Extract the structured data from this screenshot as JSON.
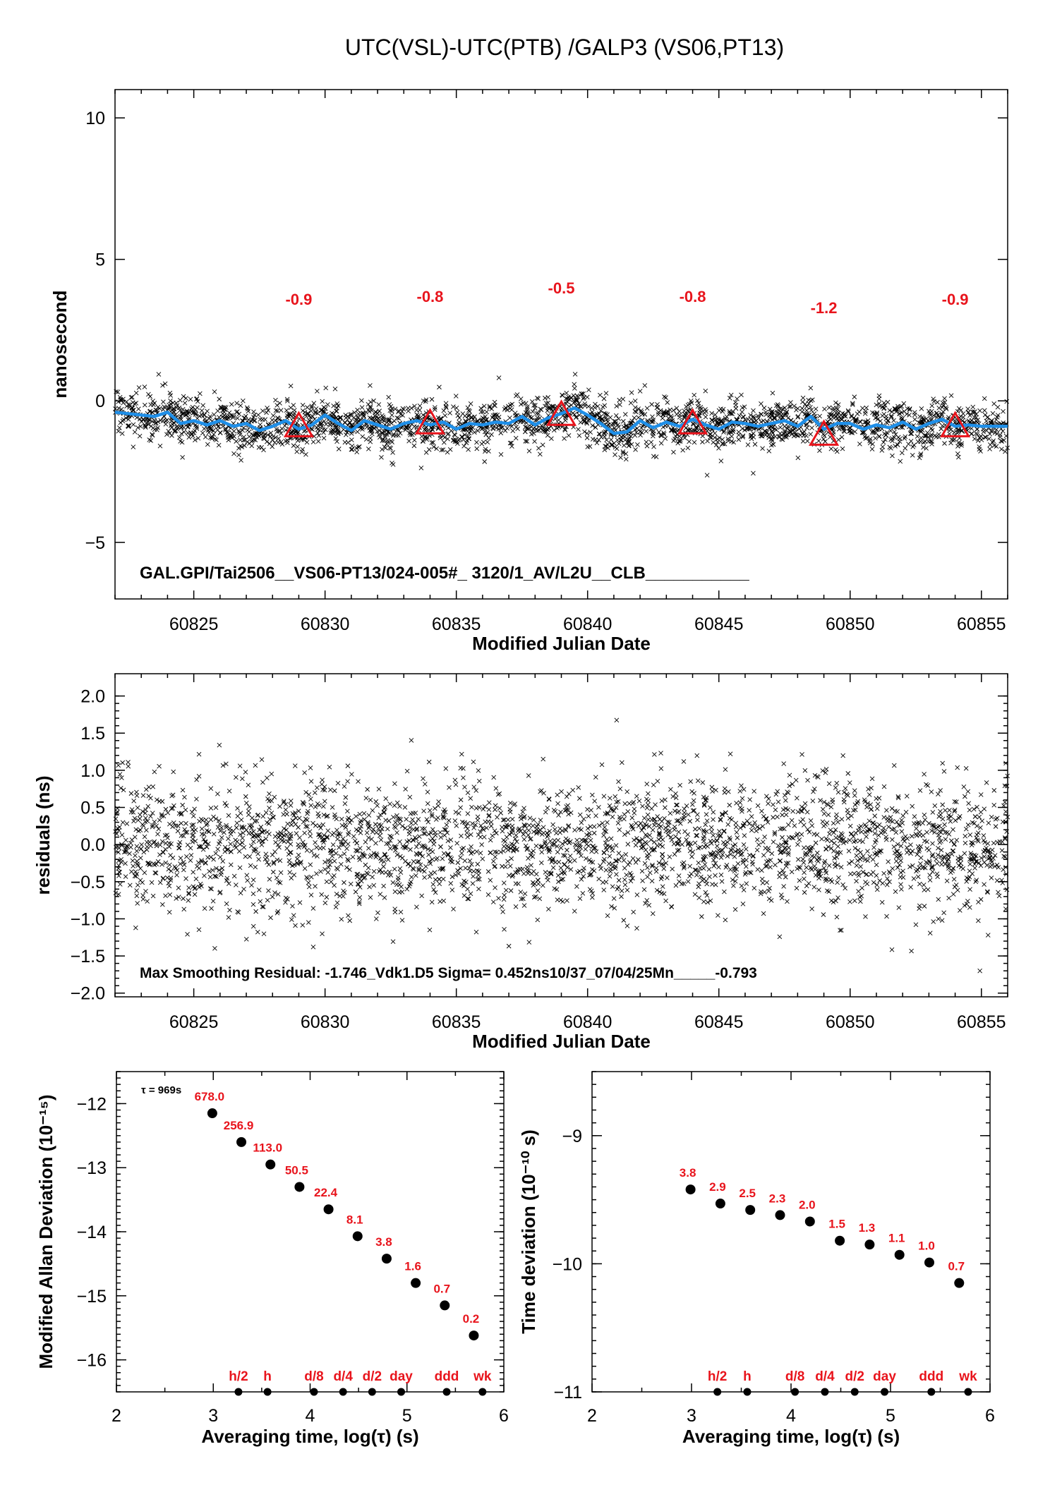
{
  "title": "UTC(VSL)-UTC(PTB)  /GALP3  (VS06,PT13)",
  "colors": {
    "smooth_line": "#1f8fe8",
    "marker": "#e8141c",
    "annot": "#e8141c",
    "points": "#000000"
  },
  "chart_data": [
    {
      "id": "time_series",
      "type": "scatter",
      "xlabel": "Modified Julian Date",
      "ylabel": "nanosecond",
      "xlim": [
        60822,
        60856
      ],
      "ylim": [
        -7,
        11
      ],
      "xticks": [
        "60825",
        "60830",
        "60835",
        "60840",
        "60845",
        "60850",
        "60855"
      ],
      "yticks": [
        "10",
        "5",
        "0",
        "−5"
      ],
      "annotation": "GAL.GPI/Tai2506__VS06-PT13/024-005#_  3120/1_AV/L2U__CLB___________",
      "smoothed": {
        "x": [
          60822,
          60823,
          60823.5,
          60824,
          60824.5,
          60825,
          60825.5,
          60826,
          60826.5,
          60827,
          60827.5,
          60828,
          60828.5,
          60829,
          60829.5,
          60830,
          60830.5,
          60831,
          60831.5,
          60832,
          60832.5,
          60833,
          60833.5,
          60834,
          60834.5,
          60835,
          60835.5,
          60836,
          60836.5,
          60837,
          60837.5,
          60838,
          60838.5,
          60839,
          60839.5,
          60840,
          60840.5,
          60841,
          60841.5,
          60842,
          60842.5,
          60843,
          60843.5,
          60844,
          60844.5,
          60845,
          60845.5,
          60846,
          60846.5,
          60847,
          60847.5,
          60848,
          60848.5,
          60849,
          60849.5,
          60850,
          60850.5,
          60851,
          60851.5,
          60852,
          60852.5,
          60853,
          60853.5,
          60854,
          60854.5,
          60855,
          60856
        ],
        "y": [
          -0.4,
          -0.5,
          -0.55,
          -0.4,
          -0.8,
          -0.7,
          -0.85,
          -0.7,
          -0.9,
          -0.8,
          -1.05,
          -0.9,
          -0.7,
          -1.0,
          -0.85,
          -0.5,
          -0.8,
          -1.05,
          -0.7,
          -0.85,
          -1.0,
          -0.8,
          -0.7,
          -0.85,
          -0.75,
          -1.0,
          -0.8,
          -0.85,
          -0.75,
          -0.8,
          -0.55,
          -0.85,
          -0.6,
          -0.45,
          -0.25,
          -0.5,
          -0.8,
          -1.15,
          -1.1,
          -0.7,
          -0.95,
          -0.75,
          -0.9,
          -0.65,
          -0.85,
          -1.0,
          -0.75,
          -0.8,
          -0.9,
          -0.8,
          -0.7,
          -0.9,
          -0.55,
          -1.0,
          -0.8,
          -0.8,
          -1.0,
          -0.85,
          -0.95,
          -0.75,
          -1.0,
          -0.8,
          -0.65,
          -0.9,
          -0.85,
          -0.9,
          -0.9
        ]
      },
      "markers": [
        {
          "x": 60829,
          "y": -0.9,
          "label": "-0.9"
        },
        {
          "x": 60834,
          "y": -0.8,
          "label": "-0.8"
        },
        {
          "x": 60839,
          "y": -0.5,
          "label": "-0.5"
        },
        {
          "x": 60844,
          "y": -0.8,
          "label": "-0.8"
        },
        {
          "x": 60849,
          "y": -1.2,
          "label": "-1.2"
        },
        {
          "x": 60854,
          "y": -0.9,
          "label": "-0.9"
        }
      ],
      "scatter_note": "dense scatter of ~3000 measurements, y range about -2.7 to 1.2 ns"
    },
    {
      "id": "residuals",
      "type": "scatter",
      "xlabel": "Modified Julian Date",
      "ylabel": "residuals (ns)",
      "xlim": [
        60822,
        60856
      ],
      "ylim": [
        -2.05,
        2.3
      ],
      "xticks": [
        "60825",
        "60830",
        "60835",
        "60840",
        "60845",
        "60850",
        "60855"
      ],
      "yticks": [
        "2.0",
        "1.5",
        "1.0",
        "0.5",
        "0.0",
        "−0.5",
        "−1.0",
        "−1.5",
        "−2.0"
      ],
      "annotation": "Max Smoothing Residual: -1.746_Vdk1.D5  Sigma= 0.452ns10/37_07/04/25Mn_____-0.793",
      "sigma_ns": 0.452,
      "max_residual": -1.746
    },
    {
      "id": "mdev",
      "type": "scatter",
      "xlabel": "Averaging time, log(τ) (s)",
      "ylabel": "Modified Allan Deviation (10⁻¹⁵)",
      "xlim": [
        2,
        6
      ],
      "ylim": [
        -16.5,
        -11.5
      ],
      "xticks": [
        "2",
        "3",
        "4",
        "5",
        "6"
      ],
      "yticks": [
        "−12",
        "−13",
        "−14",
        "−15",
        "−16"
      ],
      "tau_note": "τ = 969s",
      "x": [
        2.99,
        3.29,
        3.59,
        3.89,
        4.19,
        4.49,
        4.79,
        5.09,
        5.39,
        5.69
      ],
      "y": [
        -12.15,
        -12.6,
        -12.95,
        -13.3,
        -13.65,
        -14.07,
        -14.42,
        -14.8,
        -15.15,
        -15.62
      ],
      "labels": [
        "678.0",
        "256.9",
        "113.0",
        "50.5",
        "22.4",
        "8.1",
        "3.8",
        "1.6",
        "0.7",
        "0.2"
      ],
      "bottom_markers": [
        {
          "x": 3.26,
          "label": "h/2"
        },
        {
          "x": 3.56,
          "label": "h"
        },
        {
          "x": 4.04,
          "label": "d/8"
        },
        {
          "x": 4.34,
          "label": "d/4"
        },
        {
          "x": 4.64,
          "label": "d/2"
        },
        {
          "x": 4.94,
          "label": "day"
        },
        {
          "x": 5.41,
          "label": "ddd"
        },
        {
          "x": 5.78,
          "label": "wk"
        }
      ]
    },
    {
      "id": "tdev",
      "type": "scatter",
      "xlabel": "Averaging time, log(τ) (s)",
      "ylabel": "Time deviation (10⁻¹⁰ s)",
      "xlim": [
        2,
        6
      ],
      "ylim": [
        -11,
        -8.5
      ],
      "xticks": [
        "2",
        "3",
        "4",
        "5",
        "6"
      ],
      "yticks": [
        "−9",
        "−10",
        "−11"
      ],
      "x": [
        2.99,
        3.29,
        3.59,
        3.89,
        4.19,
        4.49,
        4.79,
        5.09,
        5.39,
        5.69
      ],
      "y": [
        -9.42,
        -9.53,
        -9.58,
        -9.62,
        -9.67,
        -9.82,
        -9.85,
        -9.93,
        -9.99,
        -10.15
      ],
      "labels": [
        "3.8",
        "2.9",
        "2.5",
        "2.3",
        "2.0",
        "1.5",
        "1.3",
        "1.1",
        "1.0",
        "0.7"
      ],
      "bottom_markers": [
        {
          "x": 3.26,
          "label": "h/2"
        },
        {
          "x": 3.56,
          "label": "h"
        },
        {
          "x": 4.04,
          "label": "d/8"
        },
        {
          "x": 4.34,
          "label": "d/4"
        },
        {
          "x": 4.64,
          "label": "d/2"
        },
        {
          "x": 4.94,
          "label": "day"
        },
        {
          "x": 5.41,
          "label": "ddd"
        },
        {
          "x": 5.78,
          "label": "wk"
        }
      ]
    }
  ]
}
